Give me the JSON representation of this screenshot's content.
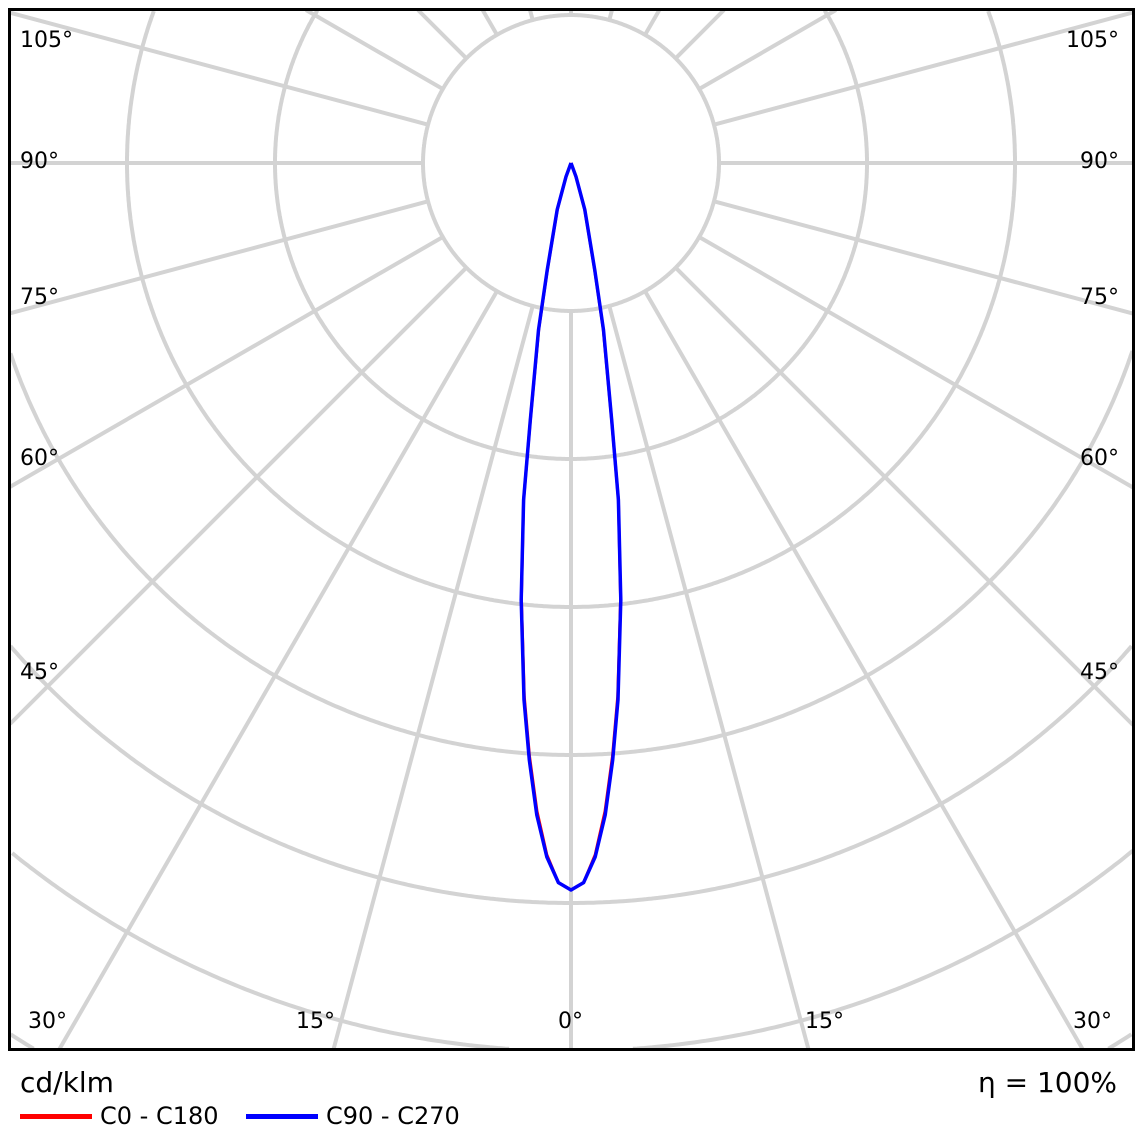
{
  "chart_data": {
    "type": "polar",
    "title": "",
    "unit_label": "cd/klm",
    "efficiency_label": "η = 100%",
    "angle_labels": [
      "105°",
      "90°",
      "75°",
      "60°",
      "45°",
      "30°",
      "15°",
      "0°",
      "15°",
      "30°",
      "45°",
      "60°",
      "75°",
      "90°",
      "105°"
    ],
    "angle_step_deg": 15,
    "ring_count": 6,
    "grid": true,
    "legend_placement": "bottom-left",
    "intensity_scale": "relative to peak (ring values not printed)",
    "series": [
      {
        "name": "C0 - C180",
        "color": "#ff0000",
        "gamma": [
          0,
          1,
          2,
          3,
          4,
          5,
          6.5,
          8,
          9,
          11,
          12.5,
          16.5,
          20,
          25
        ],
        "values": [
          1,
          0.99,
          0.952,
          0.893,
          0.818,
          0.737,
          0.603,
          0.468,
          0.357,
          0.232,
          0.15,
          0.066,
          0.02,
          0
        ]
      },
      {
        "name": "C90 - C270",
        "color": "#0000ff",
        "gamma": [
          0,
          1,
          2,
          3,
          4,
          5,
          6.5,
          8,
          9,
          11,
          12.5,
          16.5,
          20,
          25
        ],
        "values": [
          1,
          0.99,
          0.955,
          0.898,
          0.823,
          0.741,
          0.605,
          0.468,
          0.358,
          0.234,
          0.151,
          0.067,
          0.02,
          0
        ]
      }
    ]
  }
}
